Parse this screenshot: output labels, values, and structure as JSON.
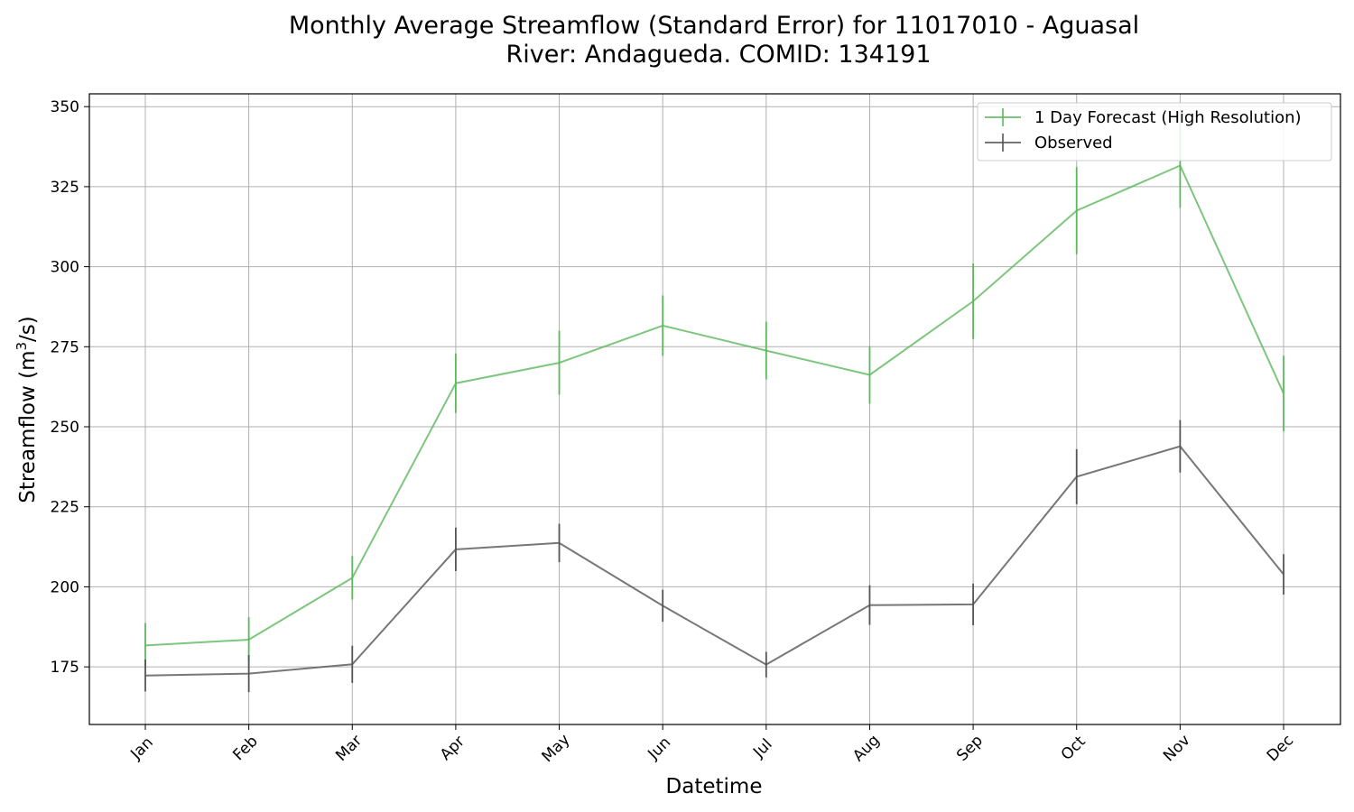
{
  "chart_data": {
    "type": "line",
    "title_line1": "Monthly Average Streamflow (Standard Error) for 11017010 - Aguasal",
    "title_line2": "River: Andagueda. COMID: 134191",
    "xlabel": "Datetime",
    "ylabel_main": "Streamflow (m",
    "ylabel_sup": "3",
    "ylabel_end": "/s)",
    "categories": [
      "Jan",
      "Feb",
      "Mar",
      "Apr",
      "May",
      "Jun",
      "Jul",
      "Aug",
      "Sep",
      "Oct",
      "Nov",
      "Dec"
    ],
    "ylim": [
      157,
      354
    ],
    "yticks": [
      175,
      200,
      225,
      250,
      275,
      300,
      325,
      350
    ],
    "grid": true,
    "legend_position": "top-right",
    "series": [
      {
        "name": "1 Day Forecast (High Resolution)",
        "color": "#5cb85c",
        "values": [
          181.7,
          183.5,
          202.8,
          263.6,
          270.0,
          281.6,
          273.8,
          266.2,
          289.2,
          317.5,
          331.6,
          260.4
        ],
        "errors": [
          7.0,
          7.0,
          6.8,
          9.3,
          10.0,
          9.4,
          9.0,
          9.0,
          11.8,
          13.6,
          13.2,
          11.8
        ]
      },
      {
        "name": "Observed",
        "color": "#555555",
        "values": [
          172.3,
          172.9,
          175.8,
          211.7,
          213.7,
          194.1,
          175.7,
          194.3,
          194.5,
          234.4,
          243.9,
          203.9
        ],
        "errors": [
          5.0,
          5.8,
          5.8,
          6.8,
          6.0,
          5.0,
          4.0,
          6.2,
          6.5,
          8.6,
          8.2,
          6.3
        ]
      }
    ]
  }
}
